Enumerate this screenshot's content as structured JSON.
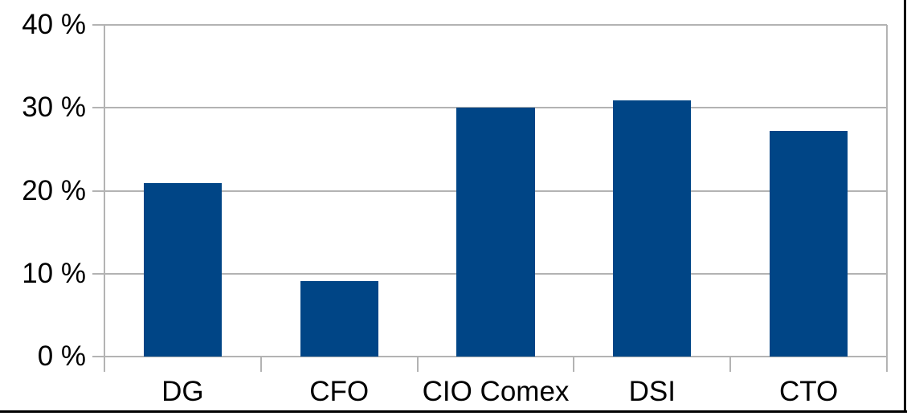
{
  "chart_data": {
    "type": "bar",
    "categories": [
      "DG",
      "CFO",
      "CIO Comex",
      "DSI",
      "CTO"
    ],
    "values": [
      20.9,
      9.1,
      30.0,
      30.9,
      27.2
    ],
    "title": "",
    "xlabel": "",
    "ylabel": "",
    "ylim": [
      0,
      40
    ],
    "y_ticks": [
      0,
      10,
      20,
      30,
      40
    ],
    "y_tick_labels": [
      "0 %",
      "10 %",
      "20 %",
      "30 %",
      "40 %"
    ],
    "grid": "horizontal",
    "legend": "none",
    "bar_color": "#004586",
    "grid_color": "#b3b3b3",
    "axis_color": "#b3b3b3",
    "text_color": "#000000",
    "background_color": "#ffffff",
    "frame_border_color": "#000000"
  }
}
